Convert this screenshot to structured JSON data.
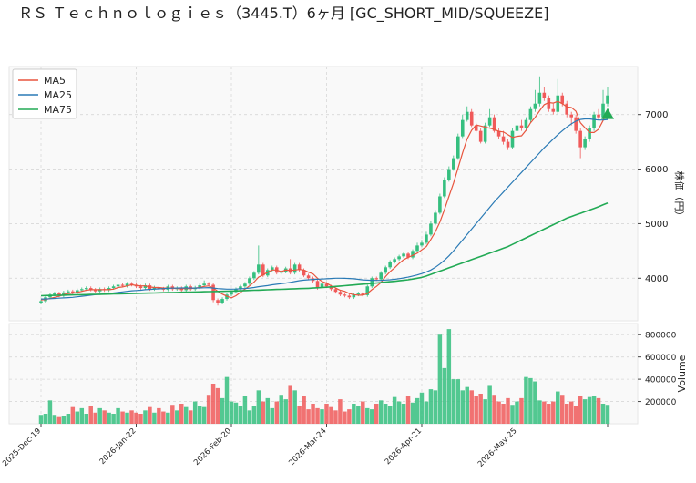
{
  "chart_data": {
    "type": "candlestick",
    "title": "ＲＳ Ｔｅｃｈｎｏｌｏｇｉｅｓ（3445.T）6ヶ月 [GC_SHORT_MID/SQUEEZE]",
    "categories": [
      "2025-Dec-19",
      null,
      null,
      null,
      null,
      null,
      null,
      null,
      null,
      null,
      null,
      null,
      null,
      null,
      null,
      null,
      null,
      null,
      null,
      null,
      null,
      "2026-Jan-22",
      null,
      null,
      null,
      null,
      null,
      null,
      null,
      null,
      null,
      null,
      null,
      null,
      null,
      null,
      null,
      null,
      null,
      null,
      null,
      null,
      "2026-Feb-20",
      null,
      null,
      null,
      null,
      null,
      null,
      null,
      null,
      null,
      null,
      null,
      null,
      null,
      null,
      null,
      null,
      null,
      null,
      null,
      null,
      "2026-Mar-24",
      null,
      null,
      null,
      null,
      null,
      null,
      null,
      null,
      null,
      null,
      null,
      null,
      null,
      null,
      null,
      null,
      null,
      null,
      null,
      null,
      "2026-Apr-21",
      null,
      null,
      null,
      null,
      null,
      null,
      null,
      null,
      null,
      null,
      null,
      null,
      null,
      null,
      null,
      null,
      null,
      null,
      null,
      null,
      "2026-May-25",
      null,
      null,
      null,
      null,
      null,
      null,
      null,
      null,
      null,
      null,
      null,
      null,
      null,
      null,
      null,
      null,
      null,
      null,
      null,
      null
    ],
    "open": [
      3550,
      3580,
      3650,
      3700,
      3720,
      3680,
      3740,
      3760,
      3730,
      3780,
      3800,
      3820,
      3790,
      3760,
      3800,
      3780,
      3820,
      3850,
      3880,
      3860,
      3900,
      3880,
      3850,
      3820,
      3870,
      3800,
      3830,
      3810,
      3790,
      3850,
      3800,
      3820,
      3780,
      3850,
      3800,
      3830,
      3870,
      3900,
      3880,
      3600,
      3550,
      3620,
      3700,
      3750,
      3800,
      3850,
      3900,
      4000,
      4100,
      4250,
      4050,
      4150,
      4200,
      4100,
      4120,
      4180,
      4100,
      4250,
      4150,
      4050,
      4000,
      3950,
      3820,
      3900,
      3850,
      3800,
      3750,
      3700,
      3680,
      3650,
      3700,
      3720,
      3690,
      3850,
      4000,
      3980,
      4100,
      4200,
      4300,
      4350,
      4400,
      4450,
      4380,
      4500,
      4600,
      4650,
      4800,
      5000,
      5200,
      5500,
      5800,
      6000,
      6200,
      6600,
      6900,
      7050,
      6800,
      6700,
      6500,
      6800,
      6950,
      6700,
      6600,
      6500,
      6400,
      6700,
      6800,
      6750,
      6900,
      7100,
      7200,
      7400,
      7300,
      7100,
      7050,
      7350,
      7200,
      7000,
      6950,
      6700,
      6400,
      6550,
      6750,
      7000,
      6950,
      7200
    ],
    "high": [
      3610,
      3680,
      3730,
      3750,
      3750,
      3770,
      3790,
      3790,
      3810,
      3830,
      3850,
      3850,
      3820,
      3830,
      3830,
      3850,
      3880,
      3910,
      3910,
      3930,
      3930,
      3910,
      3880,
      3900,
      3900,
      3860,
      3860,
      3840,
      3880,
      3880,
      3850,
      3850,
      3880,
      3880,
      3860,
      3900,
      3960,
      3930,
      3910,
      3630,
      3650,
      3730,
      3780,
      3830,
      3880,
      3930,
      4030,
      4130,
      4600,
      4280,
      4180,
      4230,
      4230,
      4150,
      4210,
      4350,
      4280,
      4280,
      4180,
      4080,
      4030,
      3980,
      3930,
      3930,
      3880,
      3830,
      3780,
      3730,
      3710,
      3730,
      3750,
      3750,
      3880,
      4030,
      4030,
      4130,
      4230,
      4330,
      4380,
      4430,
      4480,
      4480,
      4530,
      4650,
      4700,
      4850,
      5050,
      5250,
      5550,
      5850,
      6050,
      6250,
      6650,
      7000,
      7150,
      7100,
      6850,
      6750,
      6850,
      7100,
      7000,
      6750,
      6700,
      6550,
      6750,
      6850,
      6900,
      6950,
      7150,
      7450,
      7700,
      7500,
      7350,
      7200,
      7650,
      7400,
      7250,
      7050,
      7000,
      6750,
      6600,
      6800,
      7050,
      7100,
      7450,
      7500
    ],
    "low": [
      3520,
      3550,
      3620,
      3670,
      3650,
      3650,
      3710,
      3700,
      3700,
      3750,
      3770,
      3760,
      3730,
      3730,
      3750,
      3750,
      3790,
      3820,
      3830,
      3830,
      3850,
      3820,
      3790,
      3790,
      3770,
      3770,
      3780,
      3760,
      3760,
      3770,
      3770,
      3750,
      3750,
      3770,
      3770,
      3800,
      3840,
      3850,
      3560,
      3500,
      3520,
      3590,
      3670,
      3720,
      3770,
      3820,
      3870,
      3970,
      4070,
      4020,
      4020,
      4120,
      4070,
      4070,
      4090,
      4070,
      4070,
      4120,
      4020,
      3970,
      3920,
      3790,
      3790,
      3820,
      3770,
      3720,
      3670,
      3650,
      3620,
      3620,
      3670,
      3660,
      3660,
      3820,
      3950,
      3950,
      4070,
      4170,
      4270,
      4320,
      4370,
      4350,
      4350,
      4470,
      4570,
      4620,
      4770,
      4970,
      5170,
      5470,
      5770,
      5970,
      6170,
      6570,
      6870,
      6770,
      6670,
      6470,
      6470,
      6770,
      6670,
      6550,
      6450,
      6350,
      6370,
      6650,
      6700,
      6700,
      6850,
      7050,
      7150,
      7250,
      7050,
      7000,
      7000,
      7150,
      6950,
      6800,
      6650,
      6200,
      6350,
      6500,
      6700,
      6900,
      6900,
      7150
    ],
    "close": [
      3580,
      3650,
      3700,
      3720,
      3680,
      3740,
      3760,
      3730,
      3780,
      3800,
      3820,
      3790,
      3760,
      3800,
      3780,
      3820,
      3850,
      3880,
      3860,
      3900,
      3880,
      3850,
      3820,
      3870,
      3800,
      3830,
      3810,
      3790,
      3850,
      3800,
      3820,
      3780,
      3850,
      3800,
      3830,
      3870,
      3900,
      3880,
      3600,
      3550,
      3620,
      3700,
      3750,
      3800,
      3850,
      3900,
      4000,
      4100,
      4250,
      4050,
      4150,
      4200,
      4100,
      4120,
      4180,
      4100,
      4250,
      4150,
      4050,
      4000,
      3950,
      3820,
      3900,
      3850,
      3800,
      3750,
      3700,
      3680,
      3650,
      3700,
      3720,
      3690,
      3850,
      4000,
      3980,
      4100,
      4200,
      4300,
      4350,
      4400,
      4450,
      4380,
      4500,
      4600,
      4650,
      4800,
      5000,
      5200,
      5500,
      5800,
      6000,
      6200,
      6600,
      6900,
      7050,
      6800,
      6700,
      6500,
      6800,
      6950,
      6700,
      6600,
      6500,
      6400,
      6700,
      6800,
      6750,
      6900,
      7100,
      7200,
      7400,
      7300,
      7100,
      7050,
      7350,
      7200,
      7000,
      6950,
      6700,
      6400,
      6550,
      6750,
      7000,
      6950,
      7200,
      7350
    ],
    "up_color": "#35bf7f",
    "down_color": "#f05a5a",
    "series": [
      {
        "name": "MA5",
        "color": "#e8553e",
        "values": [
          3600,
          3610,
          3630,
          3650,
          3670,
          3700,
          3720,
          3730,
          3740,
          3760,
          3780,
          3790,
          3790,
          3790,
          3790,
          3790,
          3800,
          3830,
          3840,
          3860,
          3880,
          3870,
          3860,
          3860,
          3840,
          3830,
          3830,
          3820,
          3820,
          3820,
          3810,
          3810,
          3810,
          3810,
          3820,
          3830,
          3850,
          3860,
          3820,
          3760,
          3710,
          3670,
          3640,
          3680,
          3740,
          3800,
          3860,
          3930,
          4020,
          4060,
          4110,
          4150,
          4150,
          4120,
          4150,
          4140,
          4150,
          4160,
          4150,
          4110,
          4080,
          4000,
          3940,
          3910,
          3860,
          3820,
          3780,
          3760,
          3720,
          3700,
          3690,
          3690,
          3720,
          3790,
          3850,
          3920,
          4030,
          4120,
          4190,
          4270,
          4340,
          4380,
          4420,
          4460,
          4520,
          4580,
          4710,
          4850,
          5030,
          5260,
          5500,
          5740,
          6020,
          6300,
          6550,
          6710,
          6810,
          6790,
          6770,
          6750,
          6730,
          6690,
          6680,
          6630,
          6580,
          6600,
          6610,
          6710,
          6850,
          6950,
          7070,
          7180,
          7220,
          7210,
          7240,
          7200,
          7140,
          7130,
          7060,
          6850,
          6760,
          6670,
          6670,
          6730,
          6890,
          7050
        ]
      },
      {
        "name": "MA25",
        "color": "#2a7ab5",
        "values": [
          3620,
          3620,
          3625,
          3630,
          3635,
          3640,
          3645,
          3650,
          3660,
          3670,
          3680,
          3690,
          3700,
          3705,
          3710,
          3720,
          3730,
          3740,
          3750,
          3760,
          3770,
          3775,
          3780,
          3790,
          3795,
          3800,
          3805,
          3810,
          3815,
          3818,
          3820,
          3822,
          3822,
          3820,
          3820,
          3822,
          3825,
          3828,
          3820,
          3810,
          3805,
          3800,
          3800,
          3802,
          3806,
          3812,
          3820,
          3830,
          3845,
          3855,
          3865,
          3880,
          3890,
          3900,
          3912,
          3925,
          3940,
          3955,
          3965,
          3972,
          3978,
          3982,
          3985,
          3990,
          3995,
          4000,
          4000,
          3998,
          3995,
          3990,
          3980,
          3970,
          3965,
          3962,
          3960,
          3962,
          3966,
          3972,
          3980,
          3992,
          4005,
          4020,
          4040,
          4060,
          4085,
          4115,
          4150,
          4200,
          4260,
          4330,
          4410,
          4500,
          4600,
          4700,
          4800,
          4900,
          5000,
          5100,
          5200,
          5300,
          5400,
          5490,
          5580,
          5670,
          5760,
          5850,
          5940,
          6030,
          6120,
          6210,
          6300,
          6390,
          6470,
          6550,
          6630,
          6700,
          6770,
          6830,
          6880,
          6910,
          6920,
          6920,
          6910,
          6900,
          6900,
          6910
        ]
      },
      {
        "name": "MA75",
        "color": "#22aa55",
        "values": [
          3680,
          3682,
          3684,
          3686,
          3688,
          3690,
          3692,
          3694,
          3696,
          3698,
          3700,
          3702,
          3704,
          3706,
          3708,
          3710,
          3712,
          3714,
          3716,
          3718,
          3720,
          3722,
          3724,
          3726,
          3728,
          3730,
          3732,
          3734,
          3736,
          3738,
          3740,
          3742,
          3744,
          3746,
          3748,
          3750,
          3752,
          3754,
          3756,
          3758,
          3760,
          3762,
          3764,
          3767,
          3770,
          3773,
          3776,
          3779,
          3782,
          3785,
          3788,
          3791,
          3794,
          3797,
          3800,
          3803,
          3806,
          3809,
          3812,
          3815,
          3820,
          3825,
          3830,
          3835,
          3842,
          3849,
          3856,
          3863,
          3870,
          3877,
          3884,
          3891,
          3898,
          3905,
          3912,
          3920,
          3928,
          3936,
          3944,
          3953,
          3962,
          3972,
          3985,
          4000,
          4015,
          4040,
          4070,
          4100,
          4130,
          4160,
          4190,
          4220,
          4250,
          4280,
          4310,
          4340,
          4370,
          4400,
          4430,
          4460,
          4490,
          4520,
          4550,
          4580,
          4620,
          4660,
          4700,
          4740,
          4780,
          4820,
          4860,
          4900,
          4940,
          4980,
          5020,
          5060,
          5100,
          5130,
          5160,
          5190,
          5220,
          5250,
          5280,
          5310,
          5345,
          5380
        ]
      }
    ],
    "signal_value": 7000,
    "signal_color": "#22aa55",
    "ylim": [
      3220,
      7880
    ],
    "yticks": [
      4000,
      5000,
      6000,
      7000
    ],
    "ylabel": "株価（円）",
    "grid": true,
    "legend": "upper left",
    "volume": {
      "label": "Volume",
      "values": [
        80000,
        90000,
        210000,
        80000,
        60000,
        70000,
        90000,
        150000,
        110000,
        140000,
        90000,
        160000,
        100000,
        140000,
        120000,
        100000,
        90000,
        140000,
        110000,
        100000,
        120000,
        100000,
        90000,
        120000,
        150000,
        100000,
        140000,
        110000,
        100000,
        170000,
        120000,
        180000,
        150000,
        120000,
        200000,
        160000,
        150000,
        260000,
        360000,
        320000,
        230000,
        420000,
        200000,
        190000,
        160000,
        250000,
        120000,
        160000,
        300000,
        200000,
        230000,
        140000,
        200000,
        260000,
        220000,
        340000,
        300000,
        160000,
        250000,
        130000,
        180000,
        140000,
        130000,
        180000,
        150000,
        120000,
        220000,
        110000,
        130000,
        180000,
        160000,
        200000,
        140000,
        130000,
        180000,
        210000,
        180000,
        160000,
        240000,
        200000,
        180000,
        250000,
        190000,
        230000,
        280000,
        200000,
        310000,
        300000,
        800000,
        500000,
        850000,
        400000,
        400000,
        300000,
        330000,
        300000,
        250000,
        270000,
        220000,
        340000,
        260000,
        200000,
        180000,
        230000,
        170000,
        200000,
        230000,
        420000,
        410000,
        380000,
        210000,
        200000,
        180000,
        200000,
        290000,
        260000,
        180000,
        200000,
        160000,
        250000,
        220000,
        240000,
        250000,
        230000,
        180000,
        170000
      ],
      "ylim": [
        0,
        900000
      ],
      "yticks": [
        200000,
        400000,
        600000,
        800000
      ]
    }
  }
}
